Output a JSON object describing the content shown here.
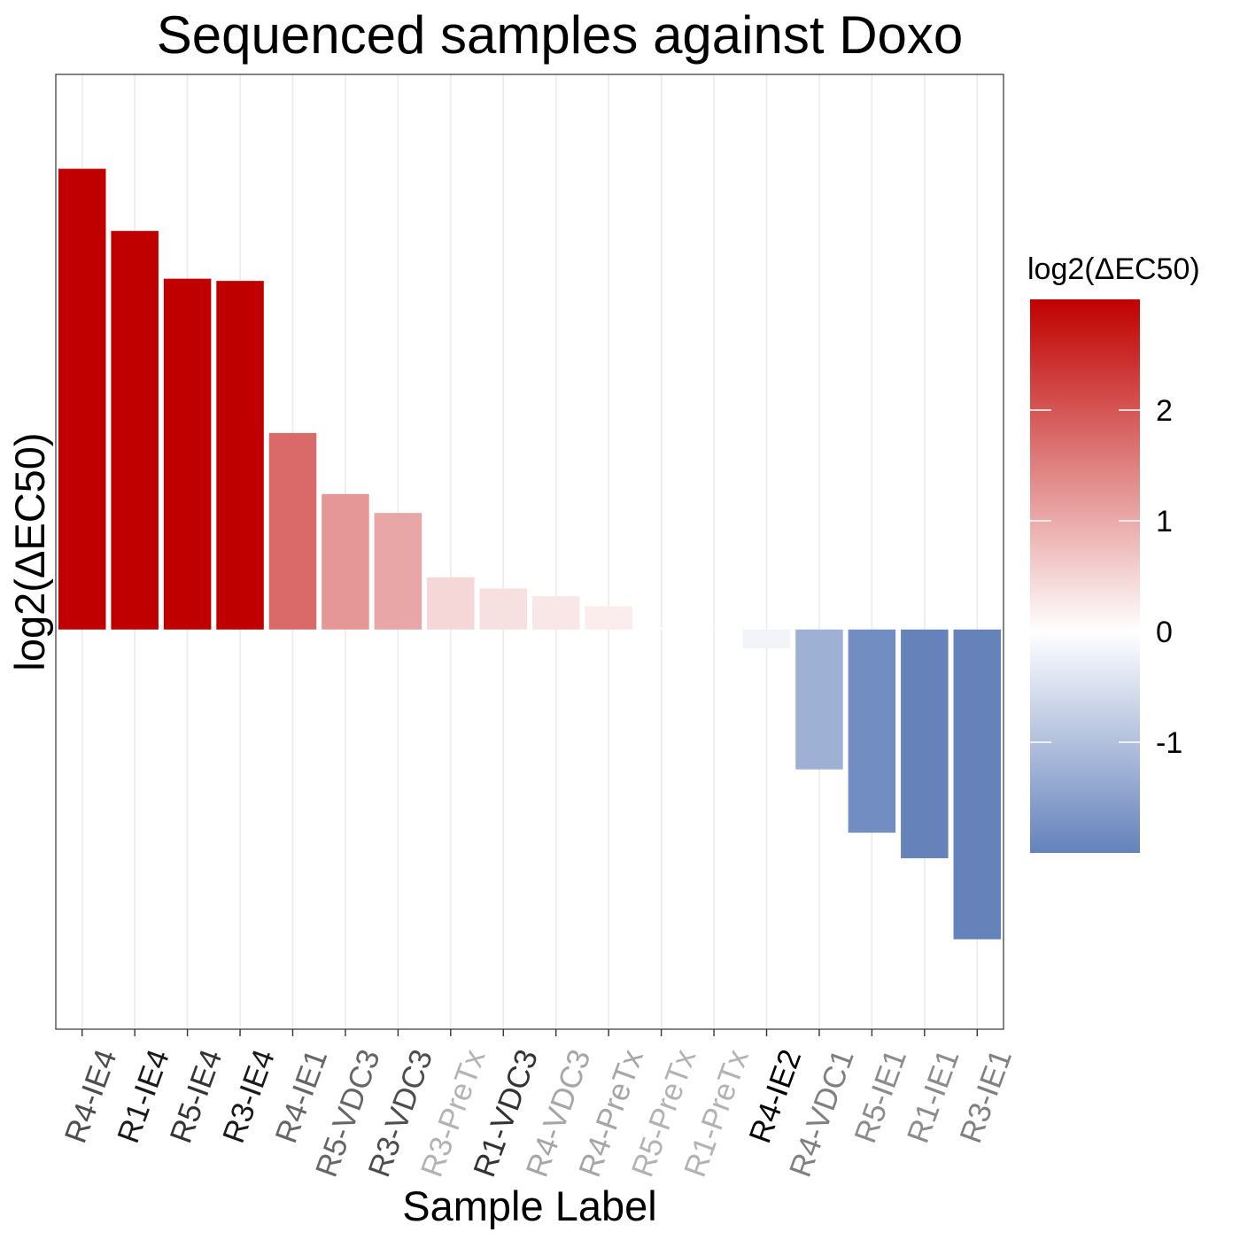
{
  "chart_data": {
    "type": "bar",
    "title": "Sequenced samples against Doxo",
    "xlabel": "Sample Label",
    "ylabel": "log2(ΔEC50)",
    "ylim": [
      -3.6,
      5.0
    ],
    "categories": [
      "R4-IE4",
      "R1-IE4",
      "R5-IE4",
      "R3-IE4",
      "R4-IE1",
      "R5-VDC3",
      "R3-VDC3",
      "R3-PreTx",
      "R1-VDC3",
      "R4-VDC3",
      "R4-PreTx",
      "R5-PreTx",
      "R1-PreTx",
      "R4-IE2",
      "R4-VDC1",
      "R5-IE1",
      "R1-IE1",
      "R3-IE1"
    ],
    "values": [
      4.15,
      3.59,
      3.16,
      3.14,
      1.77,
      1.22,
      1.05,
      0.47,
      0.37,
      0.3,
      0.21,
      0.02,
      0.01,
      -0.17,
      -1.26,
      -1.83,
      -2.06,
      -2.79
    ],
    "tick_label_colors": [
      "#4d4d4d",
      "#1a1a1a",
      "#333333",
      "#1a1a1a",
      "#666666",
      "#666666",
      "#4d4d4d",
      "#b3b3b3",
      "#333333",
      "#a6a6a6",
      "#a6a6a6",
      "#b3b3b3",
      "#b3b3b3",
      "#000000",
      "#808080",
      "#8c8c8c",
      "#8c8c8c",
      "#808080"
    ],
    "grid": {
      "vertical_major": true,
      "horizontal_major": false
    },
    "legend": {
      "title": "log2(ΔEC50)",
      "position": "right",
      "range": [
        -2.0,
        3.0
      ],
      "ticks": [
        2,
        1,
        0,
        -1
      ],
      "tick_labels": [
        "2",
        "1",
        "0",
        "-1"
      ],
      "colors": {
        "low": "#6582BB",
        "mid": "#FFFFFF",
        "high": "#C00000"
      }
    }
  }
}
